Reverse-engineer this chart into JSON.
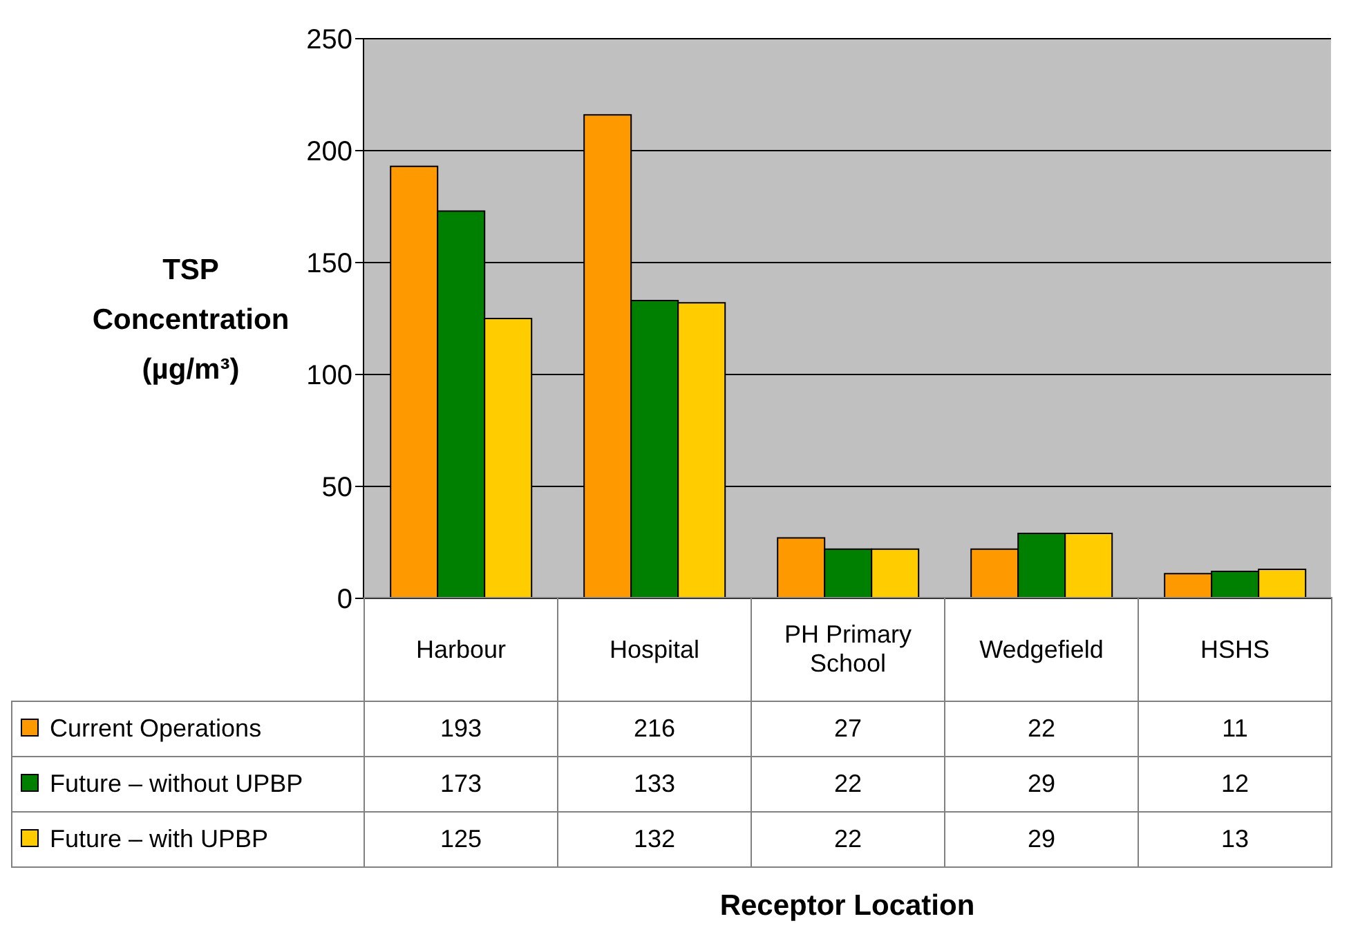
{
  "chart_data": {
    "type": "bar",
    "annotations": [
      "Receptor Location"
    ],
    "ylabel": "TSP Concentration (µg/m³)",
    "categories": [
      "Harbour",
      "Hospital",
      "PH Primary School",
      "Wedgefield",
      "HSHS"
    ],
    "series": [
      {
        "name": "Current Operations",
        "color": "#ff9900",
        "values": [
          193,
          216,
          27,
          22,
          11
        ]
      },
      {
        "name": "Future – without UPBP",
        "color": "#008000",
        "values": [
          173,
          133,
          22,
          29,
          12
        ]
      },
      {
        "name": "Future – with UPBP",
        "color": "#ffcc00",
        "values": [
          125,
          132,
          22,
          29,
          13
        ]
      }
    ],
    "ylim": [
      0,
      250
    ],
    "yticks": [
      0,
      50,
      100,
      150,
      200,
      250
    ],
    "grid": "y",
    "legend": "bottom",
    "data_labels": true
  }
}
